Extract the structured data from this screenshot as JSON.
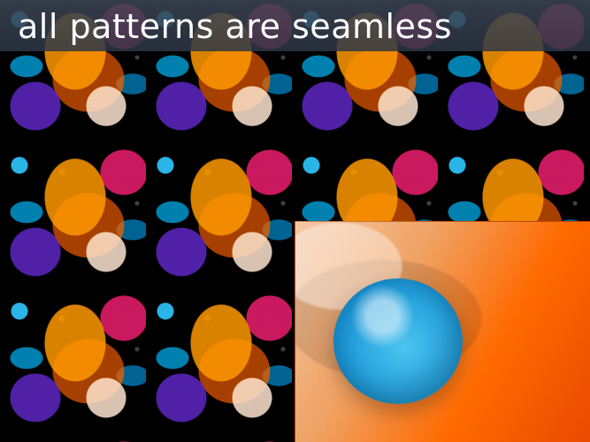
{
  "header": {
    "title": "all patterns are seamless"
  },
  "colors": {
    "title_band": "#3b4656",
    "title_text": "#ffffff",
    "blue_sphere": "#2aa6e0",
    "orange": "#ff6a00",
    "magenta": "#d4286b",
    "purple": "#5c2db0",
    "cream": "#f5e0d0"
  },
  "icons": {
    "zoom_preview": "blue-sphere-closeup",
    "pattern_tile": "paint-splash-pattern"
  }
}
